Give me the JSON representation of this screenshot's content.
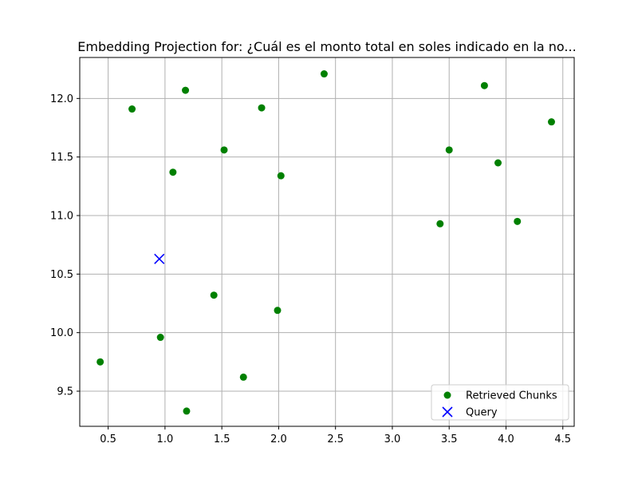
{
  "chart_data": {
    "type": "scatter",
    "title": "Embedding Projection for: ¿Cuál es el monto total en soles indicado en la no...",
    "xlabel": "",
    "ylabel": "",
    "xlim": [
      0.25,
      4.6
    ],
    "ylim": [
      9.2,
      12.35
    ],
    "xticks": [
      0.5,
      1.0,
      1.5,
      2.0,
      2.5,
      3.0,
      3.5,
      4.0,
      4.5
    ],
    "xtick_labels": [
      "0.5",
      "1.0",
      "1.5",
      "2.0",
      "2.5",
      "3.0",
      "3.5",
      "4.0",
      "4.5"
    ],
    "yticks": [
      9.5,
      10.0,
      10.5,
      11.0,
      11.5,
      12.0
    ],
    "ytick_labels": [
      "9.5",
      "10.0",
      "10.5",
      "11.0",
      "11.5",
      "12.0"
    ],
    "grid": true,
    "legend_position": "lower-right",
    "series": [
      {
        "name": "Retrieved Chunks",
        "marker": "circle",
        "color": "#008000",
        "points": [
          [
            0.43,
            9.75
          ],
          [
            0.71,
            11.91
          ],
          [
            0.96,
            9.96
          ],
          [
            1.07,
            11.37
          ],
          [
            1.18,
            12.07
          ],
          [
            1.19,
            9.33
          ],
          [
            1.43,
            10.32
          ],
          [
            1.52,
            11.56
          ],
          [
            1.69,
            9.62
          ],
          [
            1.85,
            11.92
          ],
          [
            1.99,
            10.19
          ],
          [
            2.02,
            11.34
          ],
          [
            2.4,
            12.21
          ],
          [
            3.42,
            10.93
          ],
          [
            3.5,
            11.56
          ],
          [
            3.81,
            12.11
          ],
          [
            3.93,
            11.45
          ],
          [
            4.1,
            10.95
          ],
          [
            4.4,
            11.8
          ]
        ]
      },
      {
        "name": "Query",
        "marker": "x",
        "color": "#0000ff",
        "points": [
          [
            0.95,
            10.63
          ]
        ]
      }
    ]
  }
}
